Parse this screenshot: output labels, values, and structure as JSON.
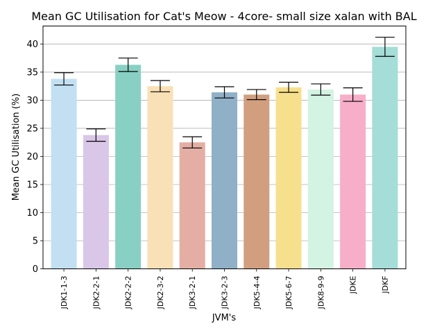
{
  "chart_data": {
    "type": "bar",
    "title": "Mean GC Utilisation for Cat's Meow - 4core- small size xalan with BAL",
    "xlabel": "JVM's",
    "ylabel": "Mean GC Utilisation (%)",
    "ylim": [
      0,
      43.2
    ],
    "yticks": [
      0,
      5,
      10,
      15,
      20,
      25,
      30,
      35,
      40
    ],
    "grid": "horizontal",
    "categories": [
      "JDK1-1-3",
      "JDK2-2-1",
      "JDK2-2-2",
      "JDK2-3-2",
      "JDK3-2-1",
      "JDK3-2-3",
      "JDK5-4-4",
      "JDK5-6-7",
      "JDK8-9-9",
      "JDKE",
      "JDKF"
    ],
    "values": [
      33.8,
      23.8,
      36.3,
      32.5,
      22.5,
      31.4,
      31.0,
      32.3,
      31.9,
      31.0,
      39.5
    ],
    "errors": [
      1.1,
      1.1,
      1.2,
      1.0,
      1.0,
      1.0,
      0.9,
      0.9,
      1.0,
      1.2,
      1.7
    ],
    "colors": [
      "#c2e0f2",
      "#dac7e7",
      "#89d0c4",
      "#fae0b6",
      "#e4aea5",
      "#8fb0c7",
      "#d19f7f",
      "#f7e08d",
      "#d3f3e3",
      "#f7aec8",
      "#a5ddd8"
    ]
  }
}
